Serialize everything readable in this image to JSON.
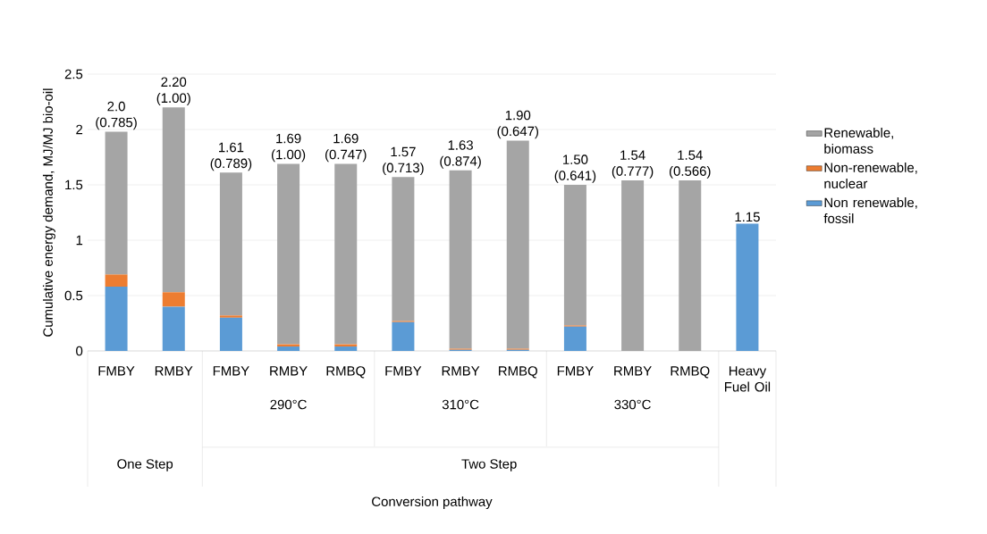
{
  "chart_data": {
    "type": "bar",
    "stacked": true,
    "ylabel": "Cumulative energy demand, MJ/MJ bio-oil",
    "categories": [
      "FMBY",
      "RMBY",
      "FMBY",
      "RMBY",
      "RMBQ",
      "FMBY",
      "RMBY",
      "RMBQ",
      "FMBY",
      "RMBY",
      "RMBQ",
      "Heavy Fuel Oil"
    ],
    "series": [
      {
        "name": "Non renewable, fossil",
        "color": "#5b9bd5",
        "values": [
          0.58,
          0.4,
          0.3,
          0.04,
          0.04,
          0.26,
          0.01,
          0.01,
          0.22,
          0,
          0,
          1.15
        ]
      },
      {
        "name": "Non-renewable, nuclear",
        "color": "#ed7d31",
        "values": [
          0.11,
          0.13,
          0.02,
          0.02,
          0.02,
          0.01,
          0.01,
          0.01,
          0.01,
          0,
          0,
          0
        ]
      },
      {
        "name": "Renewable, biomass",
        "color": "#a5a5a5",
        "values": [
          1.29,
          1.67,
          1.29,
          1.63,
          1.63,
          1.3,
          1.61,
          1.88,
          1.27,
          1.54,
          1.54,
          0
        ]
      }
    ],
    "totals": [
      "2.0 (0.785)",
      "2.20 (1.00)",
      "1.61 (0.789)",
      "1.69 (1.00)",
      "1.69 (0.747)",
      "1.57 (0.713)",
      "1.63 (0.874)",
      "1.90 (0.647)",
      "1.50 (0.641)",
      "1.54 (0.777)",
      "1.54 (0.566)",
      "1.15"
    ],
    "annotations": [
      "290°C",
      "310°C",
      "330°C",
      "One Step",
      "Two Step",
      "Conversion pathway"
    ],
    "ylim": [
      0,
      2.5
    ],
    "yticks": [
      0,
      0.5,
      1,
      1.5,
      2,
      2.5
    ],
    "grid": "y",
    "legend": "right"
  }
}
